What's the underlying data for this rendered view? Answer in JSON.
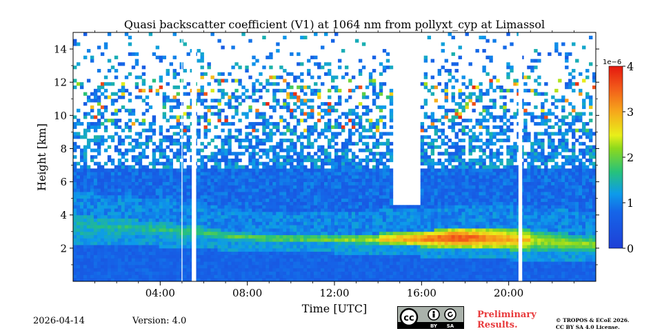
{
  "chart_data": {
    "type": "heatmap",
    "title": "Quasi backscatter coefficient (V1) at 1064 nm from pollyxt_cyp at Limassol",
    "xlabel": "Time [UTC]",
    "ylabel": "Height [km]",
    "xlim_hours": [
      0,
      24
    ],
    "ylim_km": [
      0,
      15
    ],
    "x_ticks": [
      {
        "value": 4,
        "label": "04:00"
      },
      {
        "value": 8,
        "label": "08:00"
      },
      {
        "value": 12,
        "label": "12:00"
      },
      {
        "value": 16,
        "label": "16:00"
      },
      {
        "value": 20,
        "label": "20:00"
      }
    ],
    "y_ticks": [
      {
        "value": 2,
        "label": "2"
      },
      {
        "value": 4,
        "label": "4"
      },
      {
        "value": 6,
        "label": "6"
      },
      {
        "value": 8,
        "label": "8"
      },
      {
        "value": 10,
        "label": "10"
      },
      {
        "value": 12,
        "label": "12"
      },
      {
        "value": 14,
        "label": "14"
      }
    ],
    "colorbar": {
      "range": [
        0,
        4
      ],
      "scale_label": "1e−6",
      "ticks": [
        {
          "value": 0,
          "label": "0"
        },
        {
          "value": 1,
          "label": "1"
        },
        {
          "value": 2,
          "label": "2"
        },
        {
          "value": 3,
          "label": "3"
        },
        {
          "value": 4,
          "label": "4"
        }
      ]
    },
    "features": {
      "aerosol_layer_top_km": [
        [
          0,
          4.0
        ],
        [
          2,
          3.8
        ],
        [
          4,
          3.6
        ],
        [
          6,
          3.3
        ],
        [
          7.5,
          2.95
        ],
        [
          9,
          2.85
        ],
        [
          12,
          2.8
        ],
        [
          14,
          2.9
        ],
        [
          16,
          3.05
        ],
        [
          18,
          3.25
        ],
        [
          20,
          3.2
        ],
        [
          22,
          3.0
        ],
        [
          24,
          2.7
        ]
      ],
      "aerosol_layer_bottom_km": [
        [
          0,
          2.9
        ],
        [
          4,
          2.7
        ],
        [
          8,
          2.4
        ],
        [
          12,
          2.3
        ],
        [
          16,
          2.1
        ],
        [
          20,
          1.9
        ],
        [
          24,
          1.7
        ]
      ],
      "peak_layer_value_1e-6": 3.8,
      "data_gaps_hours": [
        [
          4.98,
          5.02
        ],
        [
          5.45,
          5.65
        ],
        [
          20.45,
          20.62
        ]
      ],
      "cloud_free_column_hours": [
        14.7,
        15.9
      ]
    }
  },
  "footer": {
    "date": "2026-04-14",
    "version": "Version: 4.0",
    "preliminary_line1": "Preliminary",
    "preliminary_line2": "Results.",
    "copyright_line1": "© TROPOS & ECoE 2026.",
    "copyright_line2": "CC BY SA 4.0 License.",
    "license_badge_by": "BY",
    "license_badge_sa": "SA",
    "license_badge_cc": "cc"
  }
}
